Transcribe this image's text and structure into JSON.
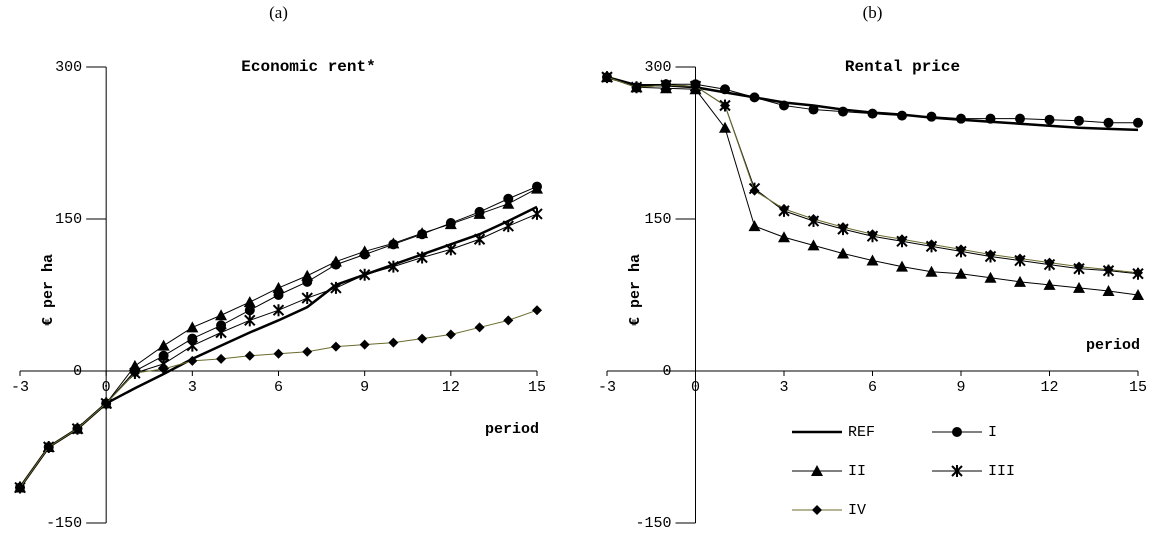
{
  "chart_data": [
    {
      "type": "line",
      "panel_label": "(a)",
      "title": "Economic rent*",
      "y_label": "€ per ha",
      "x_label": "period",
      "x": [
        -3,
        -2,
        -1,
        0,
        1,
        2,
        3,
        4,
        5,
        6,
        7,
        8,
        9,
        10,
        11,
        12,
        13,
        14,
        15
      ],
      "xlim": [
        -3,
        15
      ],
      "xticks": [
        -3,
        0,
        3,
        6,
        9,
        12,
        15
      ],
      "ylim": [
        -150,
        300
      ],
      "yticks": [
        -150,
        0,
        150,
        300
      ],
      "legend": false,
      "series": [
        {
          "marker": "none",
          "line_width": 2.5,
          "color": "#000000",
          "values": [
            -115,
            -75,
            -57,
            -32,
            -17,
            -3,
            12,
            25,
            38,
            50,
            63,
            85,
            95,
            105,
            115,
            125,
            135,
            148,
            162
          ]
        },
        {
          "marker": "circle",
          "line_width": 1,
          "color": "#000000",
          "values": [
            -115,
            -75,
            -57,
            -32,
            0,
            15,
            32,
            45,
            60,
            75,
            88,
            105,
            115,
            125,
            135,
            146,
            157,
            170,
            182
          ]
        },
        {
          "marker": "triangle",
          "line_width": 1,
          "color": "#000000",
          "values": [
            -115,
            -75,
            -57,
            -32,
            5,
            25,
            43,
            55,
            68,
            82,
            94,
            108,
            118,
            126,
            136,
            145,
            155,
            165,
            180
          ]
        },
        {
          "marker": "star",
          "line_width": 1,
          "color": "#000000",
          "values": [
            -115,
            -75,
            -57,
            -32,
            -2,
            7,
            25,
            38,
            50,
            60,
            72,
            82,
            95,
            103,
            112,
            120,
            130,
            143,
            155
          ]
        },
        {
          "marker": "diamond",
          "line_width": 1,
          "color": "#6b6b2e",
          "values": [
            -115,
            -75,
            -57,
            -32,
            -2,
            2,
            10,
            12,
            15,
            17,
            19,
            24,
            26,
            28,
            32,
            36,
            43,
            50,
            60
          ]
        }
      ]
    },
    {
      "type": "line",
      "panel_label": "(b)",
      "title": "Rental price",
      "y_label": "€ per ha",
      "x_label": "period",
      "x": [
        -3,
        -2,
        -1,
        0,
        1,
        2,
        3,
        4,
        5,
        6,
        7,
        8,
        9,
        10,
        11,
        12,
        13,
        14,
        15
      ],
      "xlim": [
        -3,
        15
      ],
      "xticks": [
        -3,
        0,
        3,
        6,
        9,
        12,
        15
      ],
      "ylim": [
        -150,
        300
      ],
      "yticks": [
        -150,
        0,
        150,
        300
      ],
      "legend": true,
      "series": [
        {
          "name": "REF",
          "marker": "none",
          "line_width": 2.5,
          "color": "#000000",
          "values": [
            290,
            282,
            282,
            280,
            275,
            270,
            265,
            262,
            258,
            255,
            253,
            250,
            248,
            246,
            244,
            242,
            240,
            239,
            238
          ]
        },
        {
          "name": "I",
          "marker": "circle",
          "line_width": 1,
          "color": "#000000",
          "values": [
            290,
            280,
            283,
            283,
            278,
            270,
            262,
            258,
            256,
            254,
            252,
            251,
            249,
            249,
            249,
            248,
            247,
            245,
            245
          ]
        },
        {
          "name": "II",
          "marker": "triangle",
          "line_width": 1,
          "color": "#000000",
          "values": [
            290,
            280,
            279,
            278,
            240,
            143,
            132,
            124,
            116,
            109,
            103,
            98,
            96,
            92,
            88,
            85,
            82,
            79,
            75
          ]
        },
        {
          "name": "III",
          "marker": "star",
          "line_width": 1,
          "color": "#000000",
          "values": [
            290,
            280,
            282,
            281,
            262,
            180,
            158,
            148,
            140,
            133,
            128,
            123,
            118,
            113,
            109,
            105,
            101,
            99,
            96
          ]
        },
        {
          "name": "IV",
          "marker": "diamond",
          "line_width": 1,
          "color": "#6b6b2e",
          "values": [
            290,
            280,
            282,
            281,
            262,
            178,
            160,
            150,
            142,
            135,
            130,
            125,
            120,
            115,
            111,
            107,
            103,
            100,
            97
          ]
        }
      ]
    }
  ]
}
